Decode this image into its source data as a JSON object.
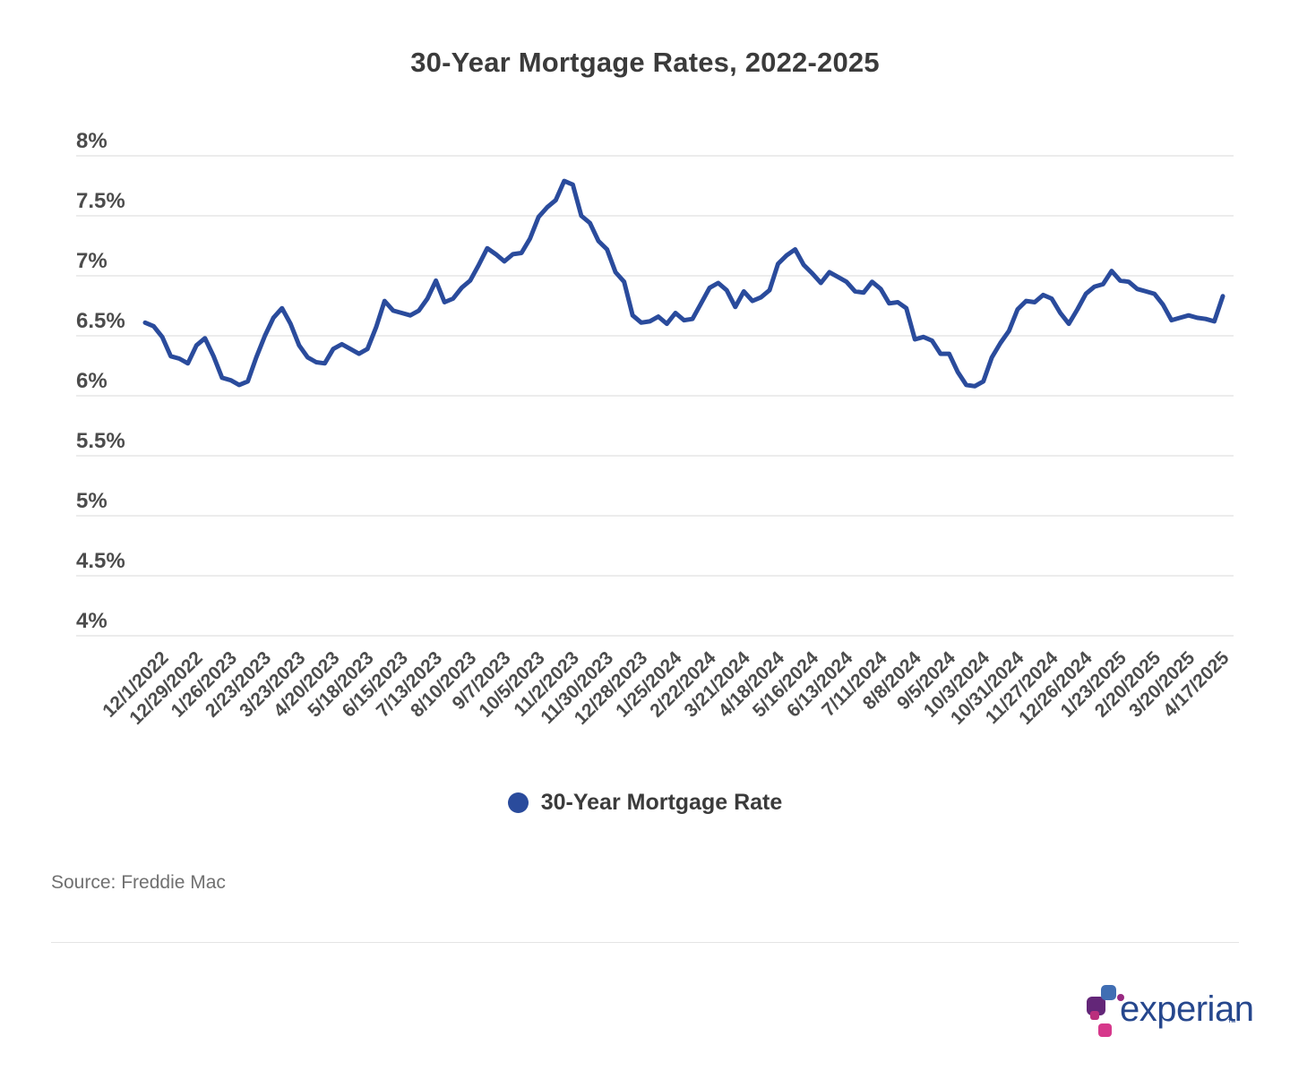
{
  "title": "30-Year Mortgage Rates, 2022-2025",
  "legend": {
    "label": "30-Year Mortgage Rate"
  },
  "source": "Source: Freddie Mac",
  "logo": {
    "wordmark": "experian",
    "trademark": "™"
  },
  "colors": {
    "line": "#2a4b9c",
    "grid": "#ececec",
    "title_text": "#3b3b3b",
    "axis_text": "#4c4c4c",
    "source_text": "#707070",
    "divider": "#e4e4e4",
    "logo_text": "#26478d",
    "logo_blue": "#406eb3",
    "logo_purple": "#632678",
    "logo_magenta": "#982881",
    "logo_small_square": "#ba2f7d",
    "logo_pink": "#d6388b"
  },
  "chart_data": {
    "type": "line",
    "title": "30-Year Mortgage Rates, 2022-2025",
    "grid": "horizontal",
    "legend_position": "bottom",
    "ylim": [
      4,
      8.3
    ],
    "ylabel": "",
    "xlabel": "",
    "y_tick_values": [
      8,
      7.5,
      7,
      6.5,
      6,
      5.5,
      5,
      4.5,
      4
    ],
    "y_tick_labels": [
      "8%",
      "7.5%",
      "7%",
      "6.5%",
      "6%",
      "5.5%",
      "5%",
      "4.5%",
      "4%"
    ],
    "x_tick_labels": [
      "12/1/2022",
      "12/29/2022",
      "1/26/2023",
      "2/23/2023",
      "3/23/2023",
      "4/20/2023",
      "5/18/2023",
      "6/15/2023",
      "7/13/2023",
      "8/10/2023",
      "9/7/2023",
      "10/5/2023",
      "11/2/2023",
      "11/30/2023",
      "12/28/2023",
      "1/25/2024",
      "2/22/2024",
      "3/21/2024",
      "4/18/2024",
      "5/16/2024",
      "6/13/2024",
      "7/11/2024",
      "8/8/2024",
      "9/5/2024",
      "10/3/2024",
      "10/31/2024",
      "11/27/2024",
      "12/26/2024",
      "1/23/2025",
      "2/20/2025",
      "3/20/2025",
      "4/17/2025"
    ],
    "x": [
      "11/17/2022",
      "11/23/2022",
      "12/1/2022",
      "12/8/2022",
      "12/15/2022",
      "12/22/2022",
      "12/29/2022",
      "1/5/2023",
      "1/12/2023",
      "1/19/2023",
      "1/26/2023",
      "2/2/2023",
      "2/9/2023",
      "2/16/2023",
      "2/23/2023",
      "3/2/2023",
      "3/9/2023",
      "3/16/2023",
      "3/23/2023",
      "3/30/2023",
      "4/6/2023",
      "4/13/2023",
      "4/20/2023",
      "4/27/2023",
      "5/4/2023",
      "5/11/2023",
      "5/18/2023",
      "5/25/2023",
      "6/1/2023",
      "6/8/2023",
      "6/15/2023",
      "6/22/2023",
      "6/29/2023",
      "7/6/2023",
      "7/13/2023",
      "7/20/2023",
      "7/27/2023",
      "8/3/2023",
      "8/10/2023",
      "8/17/2023",
      "8/24/2023",
      "8/31/2023",
      "9/7/2023",
      "9/14/2023",
      "9/21/2023",
      "9/28/2023",
      "10/5/2023",
      "10/12/2023",
      "10/19/2023",
      "10/26/2023",
      "11/2/2023",
      "11/9/2023",
      "11/16/2023",
      "11/22/2023",
      "11/30/2023",
      "12/7/2023",
      "12/14/2023",
      "12/21/2023",
      "12/28/2023",
      "1/4/2024",
      "1/11/2024",
      "1/18/2024",
      "1/25/2024",
      "2/1/2024",
      "2/8/2024",
      "2/15/2024",
      "2/22/2024",
      "2/29/2024",
      "3/7/2024",
      "3/14/2024",
      "3/21/2024",
      "3/28/2024",
      "4/4/2024",
      "4/11/2024",
      "4/18/2024",
      "4/25/2024",
      "5/2/2024",
      "5/9/2024",
      "5/16/2024",
      "5/23/2024",
      "5/30/2024",
      "6/6/2024",
      "6/13/2024",
      "6/20/2024",
      "6/27/2024",
      "7/3/2024",
      "7/11/2024",
      "7/18/2024",
      "7/25/2024",
      "8/1/2024",
      "8/8/2024",
      "8/15/2024",
      "8/22/2024",
      "8/29/2024",
      "9/5/2024",
      "9/12/2024",
      "9/19/2024",
      "9/26/2024",
      "10/3/2024",
      "10/10/2024",
      "10/17/2024",
      "10/24/2024",
      "10/31/2024",
      "11/7/2024",
      "11/14/2024",
      "11/21/2024",
      "11/27/2024",
      "12/5/2024",
      "12/12/2024",
      "12/19/2024",
      "12/26/2024",
      "1/2/2025",
      "1/9/2025",
      "1/16/2025",
      "1/23/2025",
      "1/30/2025",
      "2/6/2025",
      "2/13/2025",
      "2/20/2025",
      "2/27/2025",
      "3/6/2025",
      "3/13/2025",
      "3/20/2025",
      "3/27/2025",
      "4/3/2025",
      "4/10/2025",
      "4/17/2025"
    ],
    "series": [
      {
        "name": "30-Year Mortgage Rate",
        "values": [
          6.61,
          6.58,
          6.49,
          6.33,
          6.31,
          6.27,
          6.42,
          6.48,
          6.33,
          6.15,
          6.13,
          6.09,
          6.12,
          6.32,
          6.5,
          6.65,
          6.73,
          6.6,
          6.42,
          6.32,
          6.28,
          6.27,
          6.39,
          6.43,
          6.39,
          6.35,
          6.39,
          6.57,
          6.79,
          6.71,
          6.69,
          6.67,
          6.71,
          6.81,
          6.96,
          6.78,
          6.81,
          6.9,
          6.96,
          7.09,
          7.23,
          7.18,
          7.12,
          7.18,
          7.19,
          7.31,
          7.49,
          7.57,
          7.63,
          7.79,
          7.76,
          7.5,
          7.44,
          7.29,
          7.22,
          7.03,
          6.95,
          6.67,
          6.61,
          6.62,
          6.66,
          6.6,
          6.69,
          6.63,
          6.64,
          6.77,
          6.9,
          6.94,
          6.88,
          6.74,
          6.87,
          6.79,
          6.82,
          6.88,
          7.1,
          7.17,
          7.22,
          7.09,
          7.02,
          6.94,
          7.03,
          6.99,
          6.95,
          6.87,
          6.86,
          6.95,
          6.89,
          6.77,
          6.78,
          6.73,
          6.47,
          6.49,
          6.46,
          6.35,
          6.35,
          6.2,
          6.09,
          6.08,
          6.12,
          6.32,
          6.44,
          6.54,
          6.72,
          6.79,
          6.78,
          6.84,
          6.81,
          6.69,
          6.6,
          6.72,
          6.85,
          6.91,
          6.93,
          7.04,
          6.96,
          6.95,
          6.89,
          6.87,
          6.85,
          6.76,
          6.63,
          6.65,
          6.67,
          6.65,
          6.64,
          6.62,
          6.83
        ]
      }
    ]
  }
}
